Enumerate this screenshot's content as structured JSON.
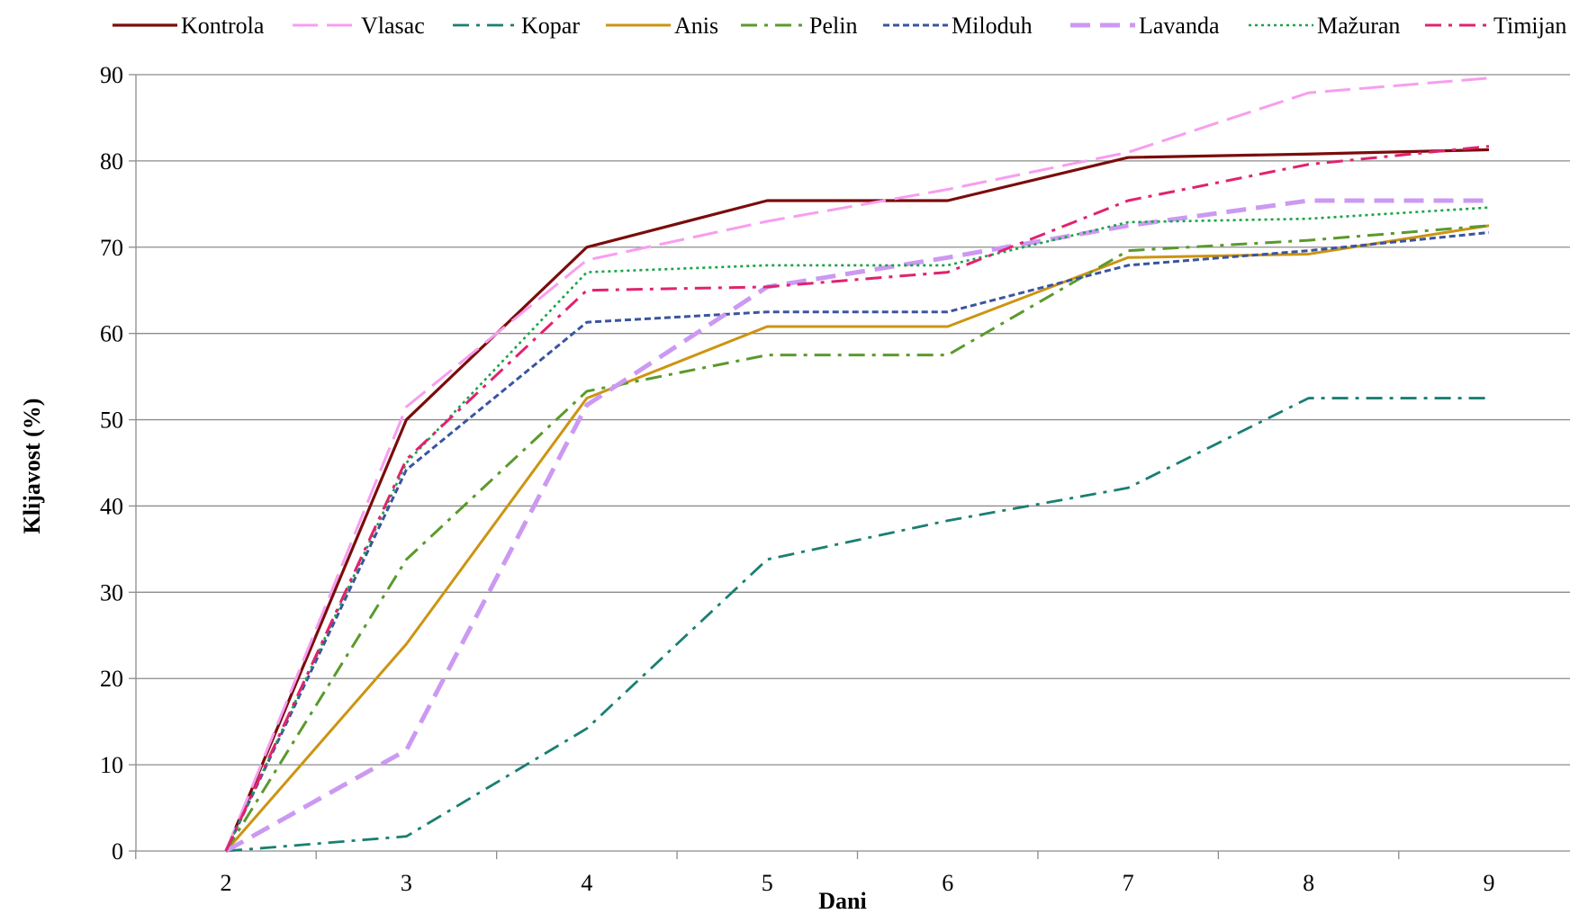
{
  "chart_data": {
    "type": "line",
    "title": "",
    "xlabel": "Dani",
    "ylabel": "Klijavost  (%)",
    "x": [
      2,
      3,
      4,
      5,
      6,
      7,
      8,
      9
    ],
    "x_tick_labels": [
      "2",
      "3",
      "4",
      "5",
      "6",
      "7",
      "8",
      "9"
    ],
    "ylim": [
      0,
      90
    ],
    "y_ticks": [
      0,
      10,
      20,
      30,
      40,
      50,
      60,
      70,
      80,
      90
    ],
    "grid": "horizontal",
    "legend_position": "top",
    "series": [
      {
        "name": "Kontrola",
        "color": "#7b0c0c",
        "dash": "solid",
        "width": 3.2,
        "values": [
          0,
          50,
          70,
          75.4,
          75.4,
          80.4,
          80.8,
          81.3
        ]
      },
      {
        "name": "Vlasac",
        "color": "#f79ef0",
        "dash": "long-dash",
        "width": 3,
        "values": [
          0,
          51.5,
          68.5,
          73,
          76.7,
          81,
          87.9,
          89.6
        ]
      },
      {
        "name": "Kopar",
        "color": "#1a7f72",
        "dash": "dash-dot",
        "width": 2.8,
        "values": [
          0,
          1.7,
          14.2,
          33.8,
          38.3,
          42.1,
          52.5,
          52.5
        ]
      },
      {
        "name": "Anis",
        "color": "#cc9411",
        "dash": "solid",
        "width": 3,
        "values": [
          0,
          24,
          52.5,
          60.8,
          60.8,
          68.8,
          69.2,
          72.5
        ]
      },
      {
        "name": "Pelin",
        "color": "#5a9a2c",
        "dash": "dash-dot",
        "width": 3,
        "values": [
          0,
          33.8,
          53.3,
          57.5,
          57.5,
          69.6,
          70.8,
          72.5
        ]
      },
      {
        "name": "Miloduh",
        "color": "#3a54a0",
        "dash": "short-dash",
        "width": 3,
        "values": [
          0,
          44.2,
          61.3,
          62.5,
          62.5,
          67.9,
          69.6,
          71.7
        ]
      },
      {
        "name": "Lavanda",
        "color": "#cc99f2",
        "dash": "thick-dash",
        "width": 5,
        "values": [
          0,
          11.7,
          51.7,
          65.4,
          68.8,
          72.5,
          75.4,
          75.4
        ]
      },
      {
        "name": "Mažuran",
        "color": "#1aa34a",
        "dash": "dot",
        "width": 2.6,
        "values": [
          0,
          45,
          67.1,
          67.9,
          67.9,
          72.9,
          73.3,
          74.6
        ]
      },
      {
        "name": "Timijan",
        "color": "#e0236f",
        "dash": "dash-dot",
        "width": 3,
        "values": [
          0,
          45.4,
          65,
          65.4,
          67.1,
          75.4,
          79.6,
          81.7
        ]
      }
    ]
  }
}
